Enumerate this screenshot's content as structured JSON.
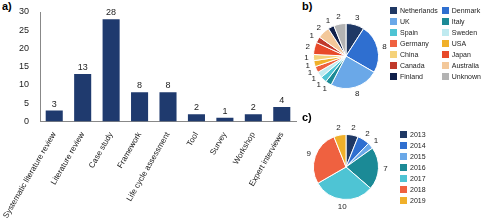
{
  "chart_data": [
    {
      "type": "bar",
      "title": "a)",
      "categories": [
        "Systematic literature review",
        "Literature review",
        "Case study",
        "Framework",
        "Life cycle assessment",
        "Tool",
        "Survey",
        "Workshop",
        "Expert interviews"
      ],
      "values": [
        3,
        13,
        28,
        8,
        8,
        2,
        1,
        2,
        4
      ],
      "color": "#1f3a6e",
      "ylim": [
        0,
        30
      ],
      "yticks": [
        0,
        5,
        10,
        15,
        20,
        25,
        30
      ],
      "grid": false,
      "data_labels": true
    },
    {
      "type": "pie",
      "title": "b)",
      "categories": [
        "Netherlands",
        "Denmark",
        "UK",
        "Italy",
        "Spain",
        "Sweden",
        "Germany",
        "USA",
        "China",
        "Japan",
        "Canada",
        "Australia",
        "Finland",
        "Unknown"
      ],
      "values": [
        3,
        8,
        8,
        1,
        1,
        1,
        1,
        1,
        1,
        2,
        1,
        2,
        1,
        2
      ],
      "colors": [
        "#1f3864",
        "#2f6fd0",
        "#6aa8e8",
        "#1b8a96",
        "#4ec4d4",
        "#bfeaf0",
        "#ef6140",
        "#f0b02a",
        "#f5d27a",
        "#e84a2a",
        "#c0392b",
        "#f3c89a",
        "#0f1f4a",
        "#b3b3b3"
      ],
      "legend": "right",
      "data_labels": true
    },
    {
      "type": "pie",
      "title": "c)",
      "categories": [
        "2013",
        "2014",
        "2015",
        "2016",
        "2017",
        "2018",
        "2019"
      ],
      "values": [
        2,
        2,
        1,
        7,
        10,
        9,
        2
      ],
      "colors": [
        "#1f3864",
        "#2f6fd0",
        "#6aa8e8",
        "#1b8a96",
        "#4ec4d4",
        "#ef6140",
        "#f0b02a"
      ],
      "legend": "right",
      "data_labels": true
    }
  ]
}
